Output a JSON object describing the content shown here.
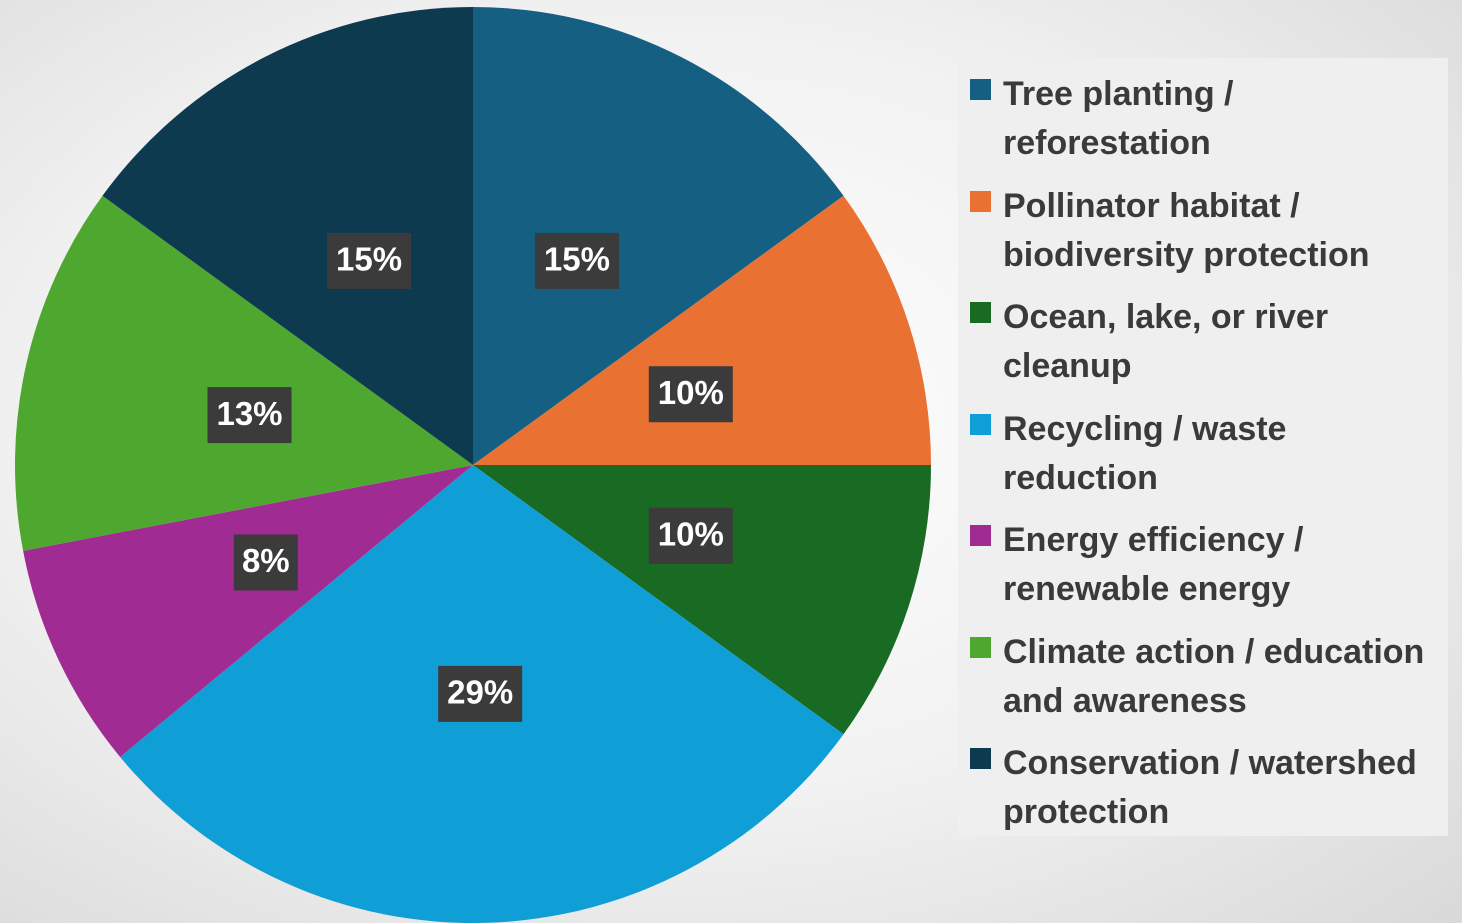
{
  "chart_data": {
    "type": "pie",
    "title": "",
    "slices": [
      {
        "name": "Tree planting / reforestation",
        "value": 15,
        "label": "15%",
        "color": "#155f83"
      },
      {
        "name": "Pollinator habitat / biodiversity protection",
        "value": 10,
        "label": "10%",
        "color": "#e97132"
      },
      {
        "name": "Ocean, lake, or river cleanup",
        "value": 10,
        "label": "10%",
        "color": "#196b24"
      },
      {
        "name": "Recycling / waste reduction",
        "value": 29,
        "label": "29%",
        "color": "#0f9ed5"
      },
      {
        "name": "Energy efficiency / renewable energy",
        "value": 8,
        "label": "8%",
        "color": "#a02b93"
      },
      {
        "name": "Climate action / education and awareness",
        "value": 13,
        "label": "13%",
        "color": "#4ea72e"
      },
      {
        "name": "Conservation / watershed protection",
        "value": 15,
        "label": "15%",
        "color": "#0e3a50"
      }
    ],
    "legend_position": "right",
    "start_angle": "12 o'clock",
    "direction": "clockwise",
    "data_label_background": "#3b3b3b"
  }
}
